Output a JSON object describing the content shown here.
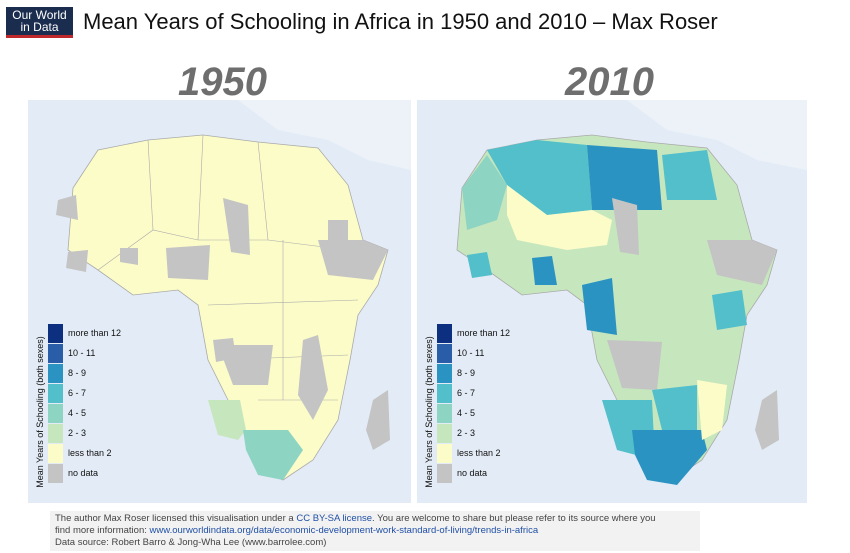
{
  "logo": {
    "line1": "Our World",
    "line2": "in Data"
  },
  "title": "Mean Years of Schooling in Africa in 1950 and 2010 – Max Roser",
  "maps": [
    {
      "year": "1950"
    },
    {
      "year": "2010"
    }
  ],
  "legend": {
    "title": "Mean Years of Schooling (both sexes)",
    "items": [
      {
        "label": "more than 12",
        "color": "#0d2f80"
      },
      {
        "label": "10 - 11",
        "color": "#2a5da8"
      },
      {
        "label": "8 - 9",
        "color": "#2b93c2"
      },
      {
        "label": "6 - 7",
        "color": "#52bfcb"
      },
      {
        "label": "4 - 5",
        "color": "#8ed4c3"
      },
      {
        "label": "2 - 3",
        "color": "#c6e6bd"
      },
      {
        "label": "less than 2",
        "color": "#fcfcc9"
      },
      {
        "label": "no data",
        "color": "#c4c4c4"
      }
    ]
  },
  "footer": {
    "line1_pre": "The author Max Roser licensed this visualisation under a ",
    "license": "CC BY-SA license",
    "line1_post": ". You are welcome to share but please refer to its source where you",
    "line2_pre": "find more information: ",
    "url": "www.ourworldindata.org/data/economic-development-work-standard-of-living/trends-in-africa",
    "line3": "Data source: Robert Barro & Jong-Wha Lee (www.barrolee.com)"
  }
}
